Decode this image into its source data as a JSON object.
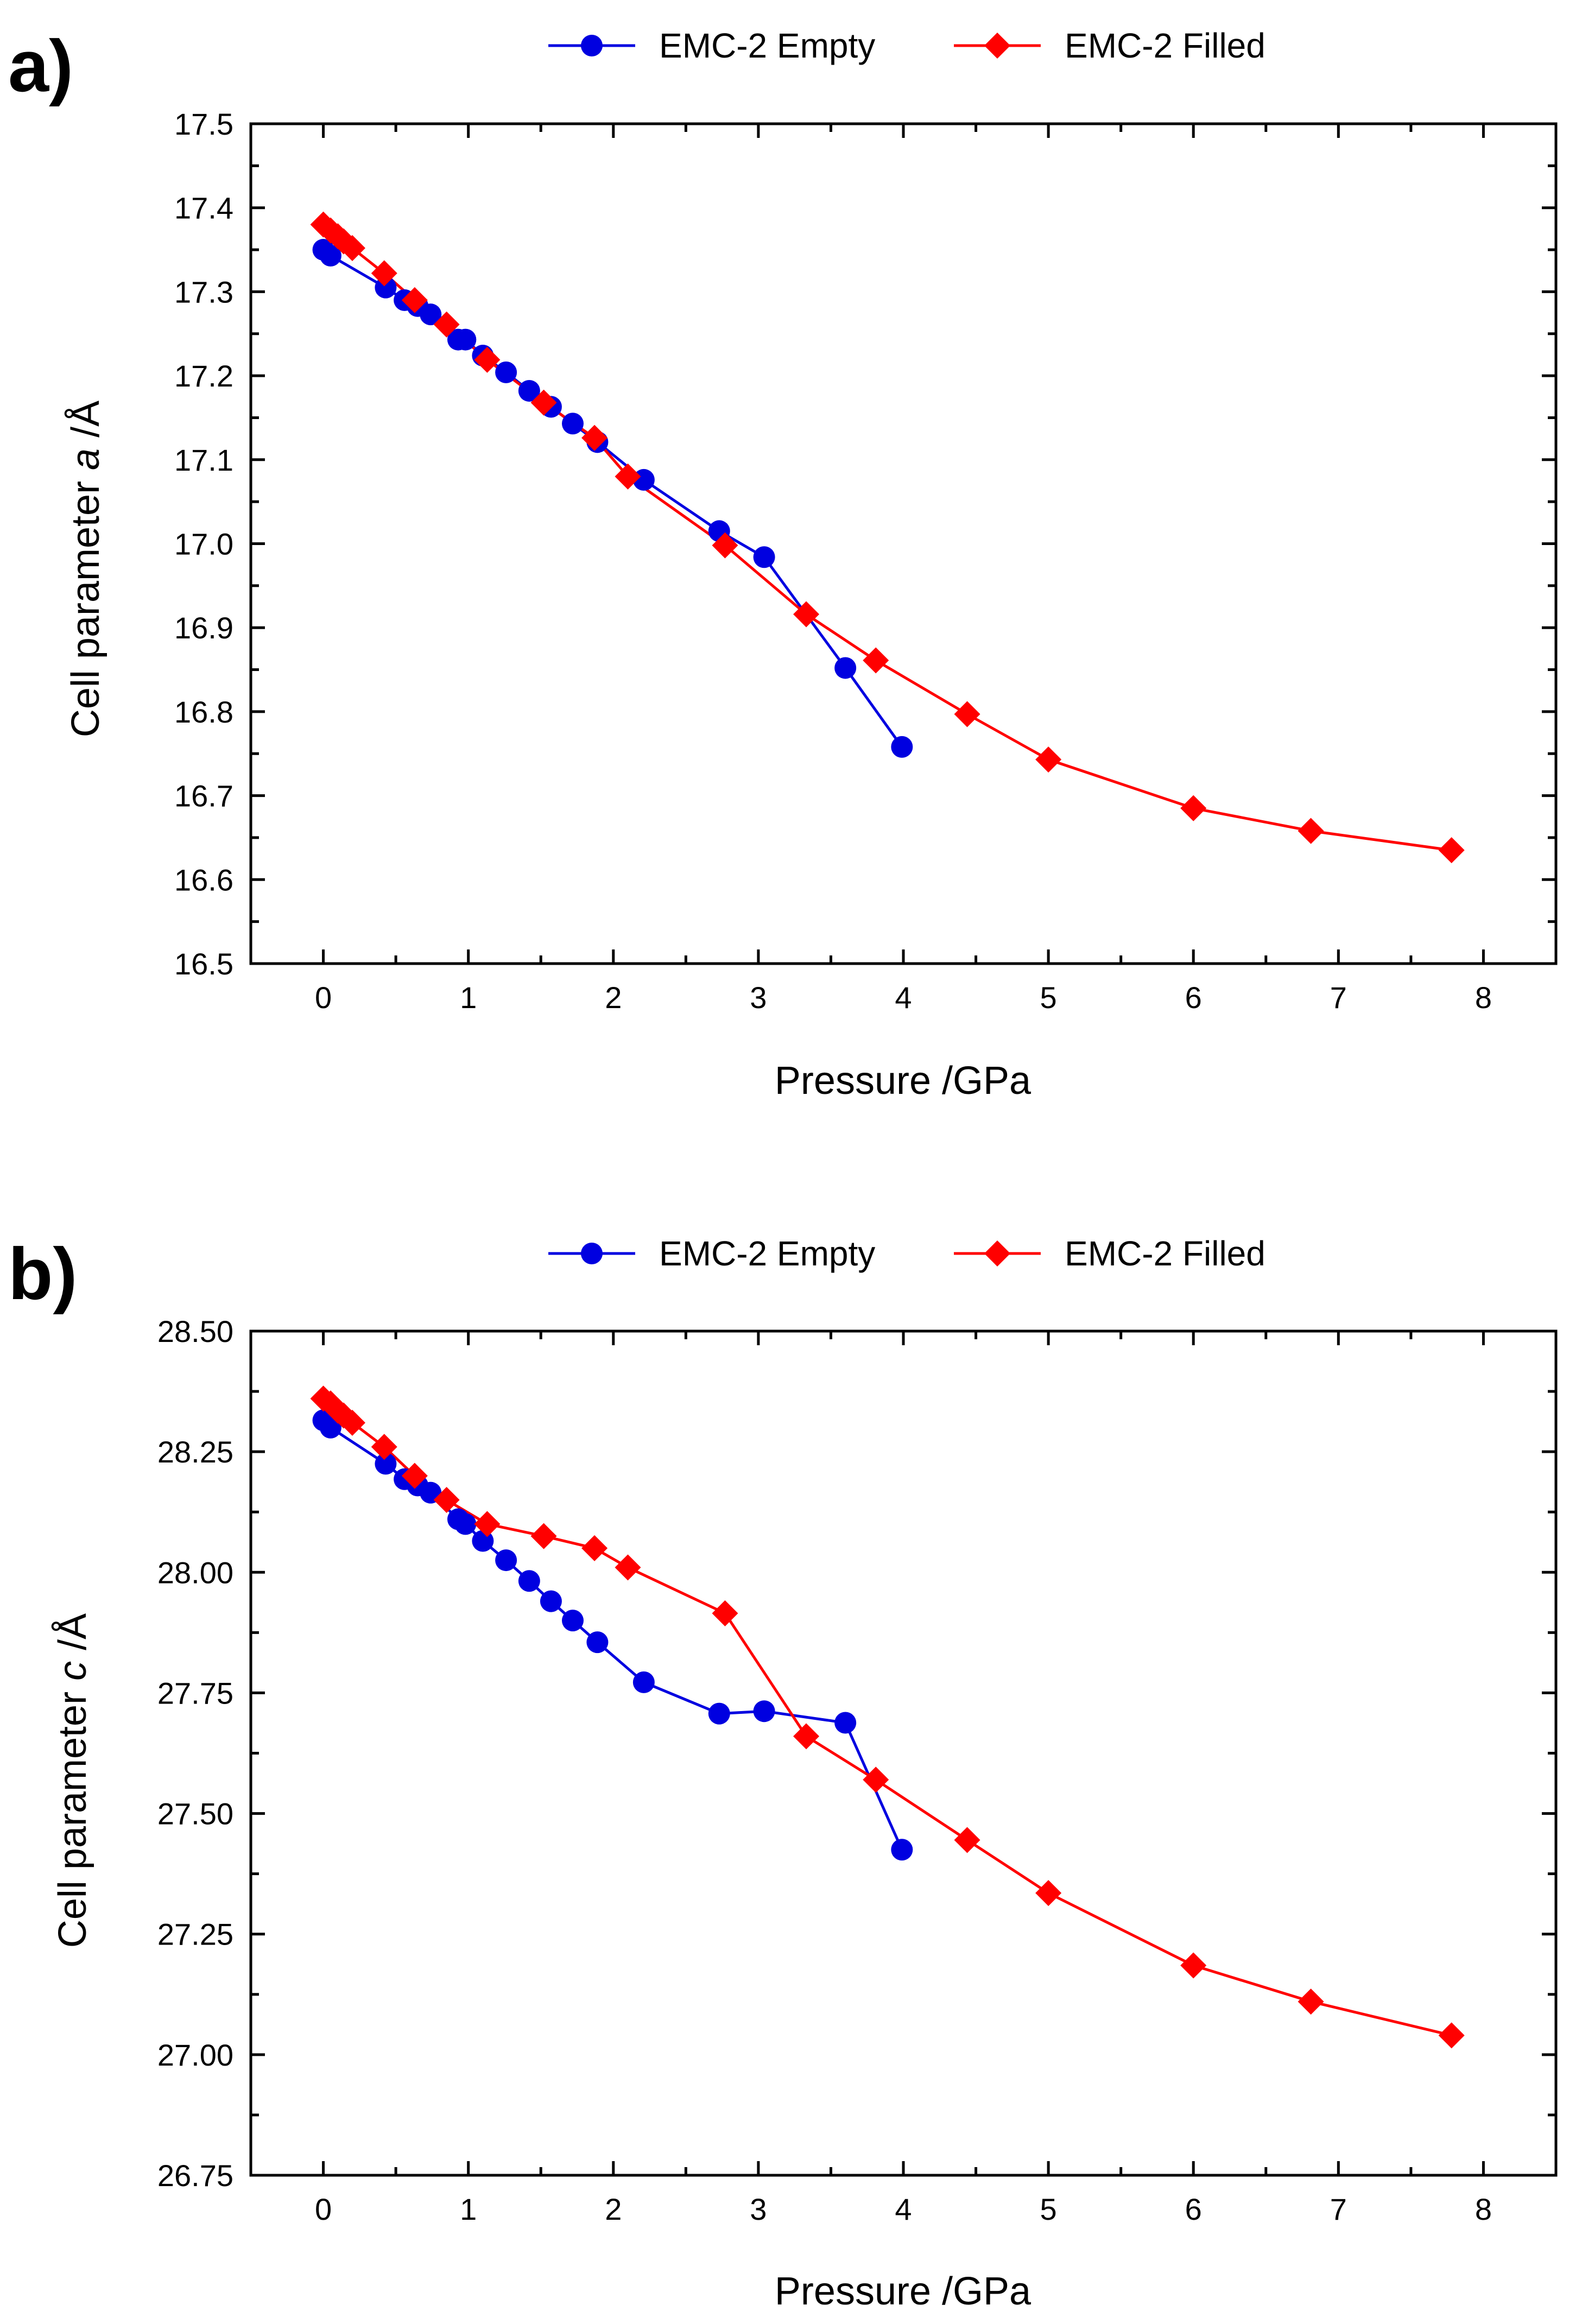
{
  "chart_data": [
    {
      "type": "line",
      "panel_label": "a)",
      "xlabel": "Pressure /GPa",
      "ylabel_prefix": "Cell parameter ",
      "ylabel_var": "a",
      "ylabel_suffix": " /Å",
      "xlim": [
        -0.5,
        8.5
      ],
      "ylim": [
        16.5,
        17.5
      ],
      "xticks": [
        0,
        1,
        2,
        3,
        4,
        5,
        6,
        7,
        8
      ],
      "xtick_labels": [
        "0",
        "1",
        "2",
        "3",
        "4",
        "5",
        "6",
        "7",
        "8"
      ],
      "yticks": [
        16.5,
        16.6,
        16.7,
        16.8,
        16.9,
        17.0,
        17.1,
        17.2,
        17.3,
        17.4,
        17.5
      ],
      "ytick_labels": [
        "16.5",
        "16.6",
        "16.7",
        "16.8",
        "16.9",
        "17.0",
        "17.1",
        "17.2",
        "17.3",
        "17.4",
        "17.5"
      ],
      "legend_position": "top-center",
      "series": [
        {
          "name": "EMC-2 Empty",
          "color": "#0000E0",
          "marker": "circle",
          "x": [
            0.0,
            0.05,
            0.43,
            0.56,
            0.65,
            0.74,
            0.93,
            0.98,
            1.1,
            1.26,
            1.42,
            1.57,
            1.72,
            1.89,
            2.21,
            2.73,
            3.04,
            3.6,
            3.99
          ],
          "y": [
            17.35,
            17.343,
            17.305,
            17.29,
            17.283,
            17.273,
            17.243,
            17.243,
            17.224,
            17.204,
            17.182,
            17.163,
            17.143,
            17.121,
            17.076,
            17.015,
            16.984,
            16.852,
            16.758
          ]
        },
        {
          "name": "EMC-2 Filled",
          "color": "#FF0000",
          "marker": "diamond",
          "x": [
            0.0,
            0.05,
            0.1,
            0.14,
            0.2,
            0.42,
            0.63,
            0.85,
            1.13,
            1.52,
            1.87,
            2.1,
            2.77,
            3.33,
            3.81,
            4.44,
            5.0,
            6.0,
            6.81,
            7.78
          ],
          "y": [
            17.38,
            17.373,
            17.366,
            17.36,
            17.352,
            17.322,
            17.29,
            17.261,
            17.219,
            17.168,
            17.126,
            17.08,
            16.998,
            16.916,
            16.861,
            16.797,
            16.743,
            16.685,
            16.658,
            16.635
          ]
        }
      ]
    },
    {
      "type": "line",
      "panel_label": "b)",
      "xlabel": "Pressure /GPa",
      "ylabel_prefix": "Cell parameter ",
      "ylabel_var": "c",
      "ylabel_suffix": " /Å",
      "xlim": [
        -0.5,
        8.5
      ],
      "ylim": [
        26.75,
        28.5
      ],
      "xticks": [
        0,
        1,
        2,
        3,
        4,
        5,
        6,
        7,
        8
      ],
      "xtick_labels": [
        "0",
        "1",
        "2",
        "3",
        "4",
        "5",
        "6",
        "7",
        "8"
      ],
      "yticks": [
        26.75,
        27.0,
        27.25,
        27.5,
        27.75,
        28.0,
        28.25,
        28.5
      ],
      "ytick_labels": [
        "26.75",
        "27.00",
        "27.25",
        "27.50",
        "27.75",
        "28.00",
        "28.25",
        "28.50"
      ],
      "legend_position": "top-center",
      "series": [
        {
          "name": "EMC-2 Empty",
          "color": "#0000E0",
          "marker": "circle",
          "x": [
            0.0,
            0.05,
            0.43,
            0.56,
            0.65,
            0.74,
            0.93,
            0.98,
            1.1,
            1.26,
            1.42,
            1.57,
            1.72,
            1.89,
            2.21,
            2.73,
            3.04,
            3.6,
            3.99
          ],
          "y": [
            28.315,
            28.3,
            28.225,
            28.193,
            28.18,
            28.165,
            28.11,
            28.1,
            28.065,
            28.025,
            27.982,
            27.94,
            27.9,
            27.855,
            27.772,
            27.707,
            27.712,
            27.688,
            27.425
          ]
        },
        {
          "name": "EMC-2 Filled",
          "color": "#FF0000",
          "marker": "diamond",
          "x": [
            0.0,
            0.05,
            0.1,
            0.14,
            0.2,
            0.42,
            0.63,
            0.85,
            1.13,
            1.52,
            1.87,
            2.1,
            2.77,
            3.33,
            3.81,
            4.44,
            5.0,
            6.0,
            6.81,
            7.78
          ],
          "y": [
            28.36,
            28.35,
            28.335,
            28.325,
            28.31,
            28.26,
            28.2,
            28.15,
            28.1,
            28.075,
            28.05,
            28.01,
            27.915,
            27.66,
            27.57,
            27.445,
            27.335,
            27.185,
            27.11,
            27.04
          ]
        }
      ]
    }
  ]
}
